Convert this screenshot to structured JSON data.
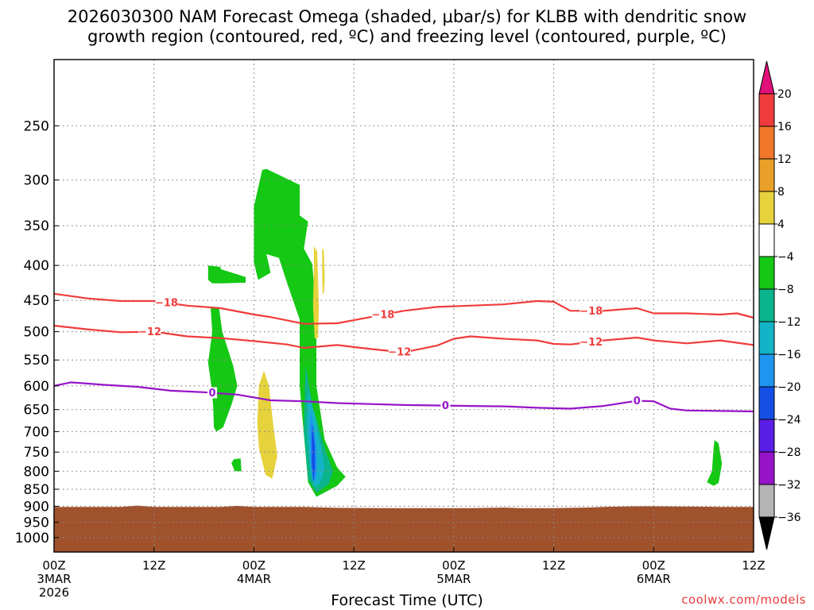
{
  "title": {
    "line1": "2026030300 NAM Forecast Omega (shaded, μbar/s) for KLBB with dendritic snow",
    "line2": "growth region (contoured, red, ºC) and freezing level (contoured, purple, ºC)"
  },
  "credit": "coolwx.com/models",
  "chart_data": {
    "type": "heatmap",
    "title": "2026030300 NAM Forecast Omega (shaded, μbar/s) for KLBB with dendritic snow growth region (contoured, red, ºC) and freezing level (contoured, purple, ºC)",
    "xlabel": "Forecast Time (UTC)",
    "ylabel": "",
    "x_unit": "forecast hour",
    "xlim": [
      0,
      84
    ],
    "ylim": [
      1050,
      200
    ],
    "y_scale": "log-pressure",
    "grid": true,
    "x_ticks": [
      {
        "hour": 0,
        "line1": "00Z",
        "line2": "3MAR",
        "line3": "2026"
      },
      {
        "hour": 12,
        "line1": "12Z",
        "line2": "",
        "line3": ""
      },
      {
        "hour": 24,
        "line1": "00Z",
        "line2": "4MAR",
        "line3": ""
      },
      {
        "hour": 36,
        "line1": "12Z",
        "line2": "",
        "line3": ""
      },
      {
        "hour": 48,
        "line1": "00Z",
        "line2": "5MAR",
        "line3": ""
      },
      {
        "hour": 60,
        "line1": "12Z",
        "line2": "",
        "line3": ""
      },
      {
        "hour": 72,
        "line1": "00Z",
        "line2": "6MAR",
        "line3": ""
      },
      {
        "hour": 84,
        "line1": "12Z",
        "line2": "",
        "line3": ""
      }
    ],
    "y_ticks": [
      {
        "p": 250,
        "label": "250"
      },
      {
        "p": 300,
        "label": "300"
      },
      {
        "p": 350,
        "label": "350"
      },
      {
        "p": 400,
        "label": "400"
      },
      {
        "p": 450,
        "label": "450"
      },
      {
        "p": 500,
        "label": "500"
      },
      {
        "p": 550,
        "label": "550"
      },
      {
        "p": 600,
        "label": "600"
      },
      {
        "p": 650,
        "label": "650"
      },
      {
        "p": 700,
        "label": "700"
      },
      {
        "p": 750,
        "label": "750"
      },
      {
        "p": 800,
        "label": "800"
      },
      {
        "p": 850,
        "label": "850"
      },
      {
        "p": 900,
        "label": "900"
      },
      {
        "p": 950,
        "label": "950"
      },
      {
        "p": 1000,
        "label": "1000"
      }
    ],
    "colorbar": {
      "labels": [
        "20",
        "16",
        "12",
        "8",
        "4",
        "−4",
        "−8",
        "−12",
        "−16",
        "−20",
        "−24",
        "−28",
        "−32",
        "−36"
      ],
      "colors": [
        "#e0107a",
        "#f03c3c",
        "#f07828",
        "#e8a028",
        "#e6d23c",
        "#ffffff",
        "#14c814",
        "#0ab48c",
        "#14b4c8",
        "#1e96f0",
        "#1450e6",
        "#5a1ee6",
        "#9614c8",
        "#b4b4b4",
        "#000000"
      ]
    },
    "contours": [
      {
        "value": -18,
        "color": "#f03c3c",
        "label": "−18",
        "points": [
          [
            0,
            440
          ],
          [
            4,
            447
          ],
          [
            8,
            451
          ],
          [
            12,
            451
          ],
          [
            16,
            458
          ],
          [
            20,
            462
          ],
          [
            24,
            472
          ],
          [
            26,
            476
          ],
          [
            30,
            487
          ],
          [
            34,
            486
          ],
          [
            38,
            476
          ],
          [
            42,
            466
          ],
          [
            46,
            460
          ],
          [
            50,
            458
          ],
          [
            54,
            456
          ],
          [
            58,
            451
          ],
          [
            60,
            452
          ],
          [
            62,
            466
          ],
          [
            66,
            466
          ],
          [
            70,
            462
          ],
          [
            72,
            470
          ],
          [
            76,
            470
          ],
          [
            80,
            472
          ],
          [
            82,
            470
          ],
          [
            84,
            477
          ]
        ],
        "label_hours": [
          13.5,
          39.5,
          64.5
        ]
      },
      {
        "value": -12,
        "color": "#f03c3c",
        "label": "−12",
        "points": [
          [
            0,
            490
          ],
          [
            4,
            496
          ],
          [
            8,
            501
          ],
          [
            12,
            500
          ],
          [
            16,
            508
          ],
          [
            20,
            511
          ],
          [
            24,
            516
          ],
          [
            28,
            522
          ],
          [
            30,
            528
          ],
          [
            34,
            523
          ],
          [
            38,
            530
          ],
          [
            42,
            536
          ],
          [
            46,
            524
          ],
          [
            48,
            512
          ],
          [
            50,
            508
          ],
          [
            54,
            512
          ],
          [
            58,
            515
          ],
          [
            60,
            521
          ],
          [
            62,
            522
          ],
          [
            66,
            515
          ],
          [
            70,
            510
          ],
          [
            72,
            515
          ],
          [
            76,
            520
          ],
          [
            80,
            515
          ],
          [
            84,
            523
          ]
        ],
        "label_hours": [
          11.5,
          41.5,
          64.5
        ]
      },
      {
        "value": 0,
        "color": "#9614c8",
        "label": "0",
        "points": [
          [
            0,
            600
          ],
          [
            2,
            593
          ],
          [
            6,
            598
          ],
          [
            10,
            602
          ],
          [
            14,
            610
          ],
          [
            18,
            613
          ],
          [
            22,
            618
          ],
          [
            26,
            630
          ],
          [
            30,
            632
          ],
          [
            34,
            636
          ],
          [
            38,
            638
          ],
          [
            42,
            640
          ],
          [
            46,
            641
          ],
          [
            50,
            642
          ],
          [
            54,
            643
          ],
          [
            58,
            646
          ],
          [
            62,
            648
          ],
          [
            66,
            642
          ],
          [
            70,
            631
          ],
          [
            72,
            632
          ],
          [
            74,
            648
          ],
          [
            76,
            652
          ],
          [
            80,
            653
          ],
          [
            84,
            654
          ]
        ],
        "label_hours": [
          19,
          47,
          70
        ]
      }
    ],
    "shaded_regions": [
      {
        "value_range": "-8 to -4",
        "color": "#14c814",
        "points": [
          [
            25.5,
            289
          ],
          [
            29.5,
            305
          ],
          [
            29.5,
            338
          ],
          [
            30.5,
            345
          ],
          [
            30,
            378
          ],
          [
            31,
            398
          ],
          [
            31.5,
            470
          ],
          [
            31.5,
            600
          ],
          [
            32.5,
            720
          ],
          [
            34,
            790
          ],
          [
            35,
            815
          ],
          [
            34,
            840
          ],
          [
            31.5,
            872
          ],
          [
            30.5,
            830
          ],
          [
            29.5,
            600
          ],
          [
            29.5,
            480
          ],
          [
            28,
            425
          ],
          [
            27,
            390
          ],
          [
            25.5,
            385
          ],
          [
            26,
            410
          ],
          [
            24.5,
            420
          ],
          [
            24,
            396
          ],
          [
            24,
            328
          ],
          [
            25,
            290
          ]
        ]
      },
      {
        "value_range": "-8 to -4",
        "color": "#14c814",
        "points": [
          [
            18.5,
            400
          ],
          [
            20,
            402
          ],
          [
            20,
            405
          ],
          [
            23,
            416
          ],
          [
            23,
            424
          ],
          [
            20,
            425
          ],
          [
            19,
            425
          ],
          [
            18.5,
            420
          ]
        ]
      },
      {
        "value_range": "-8 to -4",
        "color": "#14c814",
        "points": [
          [
            18.8,
            462
          ],
          [
            19.8,
            460
          ],
          [
            20.2,
            500
          ],
          [
            21.5,
            560
          ],
          [
            22,
            600
          ],
          [
            21.3,
            640
          ],
          [
            20.3,
            690
          ],
          [
            19.5,
            700
          ],
          [
            19.2,
            690
          ],
          [
            19.1,
            640
          ],
          [
            18.8,
            590
          ],
          [
            18.5,
            555
          ],
          [
            19,
            500
          ]
        ]
      },
      {
        "value_range": "-8 to -4",
        "color": "#14c814",
        "points": [
          [
            21.6,
            768
          ],
          [
            22.4,
            766
          ],
          [
            22.5,
            800
          ],
          [
            21.7,
            800
          ],
          [
            21.3,
            778
          ]
        ]
      },
      {
        "value_range": "-8 to -4",
        "color": "#14c814",
        "points": [
          [
            79.3,
            720
          ],
          [
            79.8,
            728
          ],
          [
            80.2,
            780
          ],
          [
            79.8,
            832
          ],
          [
            79.2,
            840
          ],
          [
            78.4,
            830
          ],
          [
            79,
            800
          ],
          [
            79.2,
            740
          ]
        ]
      },
      {
        "value_range": "-12 to -8",
        "color": "#0ab48c",
        "points": [
          [
            30.2,
            560
          ],
          [
            31,
            640
          ],
          [
            32.5,
            740
          ],
          [
            33.5,
            800
          ],
          [
            33,
            835
          ],
          [
            31.5,
            860
          ],
          [
            30.5,
            820
          ],
          [
            30,
            700
          ]
        ]
      },
      {
        "value_range": "-16 to -12",
        "color": "#14b4c8",
        "points": [
          [
            30.5,
            610
          ],
          [
            31.3,
            660
          ],
          [
            32,
            730
          ],
          [
            32.5,
            790
          ],
          [
            32,
            830
          ],
          [
            31.3,
            845
          ],
          [
            30.8,
            800
          ],
          [
            30.4,
            700
          ]
        ]
      },
      {
        "value_range": "-20 to -16",
        "color": "#1e96f0",
        "points": [
          [
            30.8,
            650
          ],
          [
            31.3,
            700
          ],
          [
            31.6,
            760
          ],
          [
            31.5,
            820
          ],
          [
            31.1,
            830
          ],
          [
            30.8,
            780
          ],
          [
            30.7,
            700
          ]
        ]
      },
      {
        "value_range": "-24 to -20",
        "color": "#1450e6",
        "points": [
          [
            31,
            680
          ],
          [
            31.3,
            730
          ],
          [
            31.35,
            790
          ],
          [
            31.15,
            830
          ],
          [
            30.95,
            780
          ],
          [
            30.95,
            710
          ]
        ]
      },
      {
        "value_range": "4 to 8",
        "color": "#e6d23c",
        "points": [
          [
            25.2,
            570
          ],
          [
            25.8,
            600
          ],
          [
            26.3,
            680
          ],
          [
            26.8,
            760
          ],
          [
            26.2,
            820
          ],
          [
            25.4,
            810
          ],
          [
            24.6,
            740
          ],
          [
            24.4,
            680
          ],
          [
            24.6,
            600
          ]
        ]
      },
      {
        "value_range": "4 to 8",
        "color": "#e6d23c",
        "points": [
          [
            31.2,
            375
          ],
          [
            31.6,
            382
          ],
          [
            31.8,
            460
          ],
          [
            31.7,
            510
          ],
          [
            31.3,
            512
          ],
          [
            31.1,
            460
          ],
          [
            31.2,
            400
          ]
        ]
      },
      {
        "value_range": "4 to 8",
        "color": "#e6d23c",
        "points": [
          [
            32.2,
            378
          ],
          [
            32.4,
            380
          ],
          [
            32.5,
            420
          ],
          [
            32.4,
            440
          ],
          [
            32.25,
            440
          ],
          [
            32.2,
            410
          ]
        ]
      }
    ],
    "terrain": {
      "color": "#a0522d",
      "points": [
        [
          0,
          902
        ],
        [
          8,
          902
        ],
        [
          10,
          898
        ],
        [
          12,
          902
        ],
        [
          20,
          902
        ],
        [
          22,
          899
        ],
        [
          24,
          902
        ],
        [
          30,
          902
        ],
        [
          34,
          905
        ],
        [
          40,
          906
        ],
        [
          50,
          906
        ],
        [
          54,
          904
        ],
        [
          56,
          906
        ],
        [
          60,
          906
        ],
        [
          64,
          904
        ],
        [
          66,
          902
        ],
        [
          70,
          900
        ],
        [
          72,
          900
        ],
        [
          80,
          902
        ],
        [
          84,
          902
        ]
      ]
    }
  }
}
